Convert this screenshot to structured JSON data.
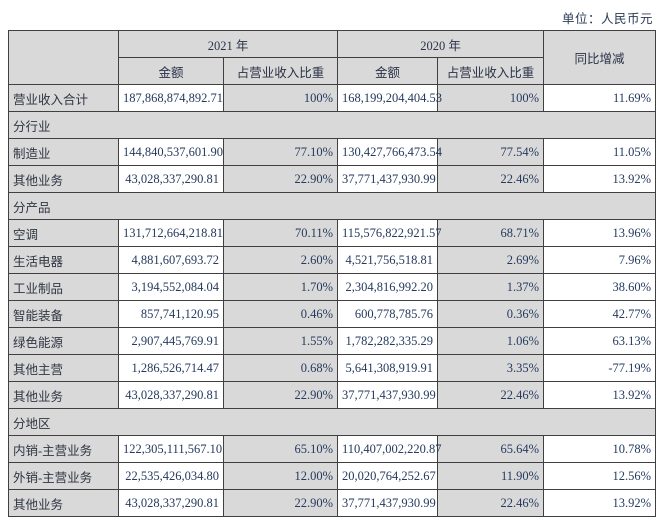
{
  "unit_label": "单位：人民币元",
  "colors": {
    "cell_gray": "#d9d9d9",
    "border": "#404040",
    "number_text": "#253a5e",
    "label_text": "#2f3542"
  },
  "table": {
    "header": {
      "year_2021": "2021 年",
      "year_2020": "2020 年",
      "yoy": "同比增减",
      "amount": "金额",
      "ratio": "占营业收入比重"
    },
    "rows": [
      {
        "type": "data",
        "label": "营业收入合计",
        "a2021": "187,868,874,892.71",
        "r2021": "100%",
        "a2020": "168,199,204,404.53",
        "r2020": "100%",
        "yoy": "11.69%"
      },
      {
        "type": "section",
        "label": "分行业"
      },
      {
        "type": "data",
        "label": "制造业",
        "a2021": "144,840,537,601.90",
        "r2021": "77.10%",
        "a2020": "130,427,766,473.54",
        "r2020": "77.54%",
        "yoy": "11.05%"
      },
      {
        "type": "data",
        "label": "其他业务",
        "a2021": "43,028,337,290.81",
        "r2021": "22.90%",
        "a2020": "37,771,437,930.99",
        "r2020": "22.46%",
        "yoy": "13.92%"
      },
      {
        "type": "section",
        "label": "分产品"
      },
      {
        "type": "data",
        "label": "空调",
        "a2021": "131,712,664,218.81",
        "r2021": "70.11%",
        "a2020": "115,576,822,921.57",
        "r2020": "68.71%",
        "yoy": "13.96%"
      },
      {
        "type": "data",
        "label": "生活电器",
        "a2021": "4,881,607,693.72",
        "r2021": "2.60%",
        "a2020": "4,521,756,518.81",
        "r2020": "2.69%",
        "yoy": "7.96%"
      },
      {
        "type": "data",
        "label": "工业制品",
        "a2021": "3,194,552,084.04",
        "r2021": "1.70%",
        "a2020": "2,304,816,992.20",
        "r2020": "1.37%",
        "yoy": "38.60%"
      },
      {
        "type": "data",
        "label": "智能装备",
        "a2021": "857,741,120.95",
        "r2021": "0.46%",
        "a2020": "600,778,785.76",
        "r2020": "0.36%",
        "yoy": "42.77%"
      },
      {
        "type": "data",
        "label": "绿色能源",
        "a2021": "2,907,445,769.91",
        "r2021": "1.55%",
        "a2020": "1,782,282,335.29",
        "r2020": "1.06%",
        "yoy": "63.13%"
      },
      {
        "type": "data",
        "label": "其他主营",
        "a2021": "1,286,526,714.47",
        "r2021": "0.68%",
        "a2020": "5,641,308,919.91",
        "r2020": "3.35%",
        "yoy": "-77.19%"
      },
      {
        "type": "data",
        "label": "其他业务",
        "a2021": "43,028,337,290.81",
        "r2021": "22.90%",
        "a2020": "37,771,437,930.99",
        "r2020": "22.46%",
        "yoy": "13.92%"
      },
      {
        "type": "section",
        "label": "分地区"
      },
      {
        "type": "data",
        "label": "内销-主营业务",
        "a2021": "122,305,111,567.10",
        "r2021": "65.10%",
        "a2020": "110,407,002,220.87",
        "r2020": "65.64%",
        "yoy": "10.78%"
      },
      {
        "type": "data",
        "label": "外销-主营业务",
        "a2021": "22,535,426,034.80",
        "r2021": "12.00%",
        "a2020": "20,020,764,252.67",
        "r2020": "11.90%",
        "yoy": "12.56%"
      },
      {
        "type": "data",
        "label": "其他业务",
        "a2021": "43,028,337,290.81",
        "r2021": "22.90%",
        "a2020": "37,771,437,930.99",
        "r2020": "22.46%",
        "yoy": "13.92%"
      }
    ]
  }
}
